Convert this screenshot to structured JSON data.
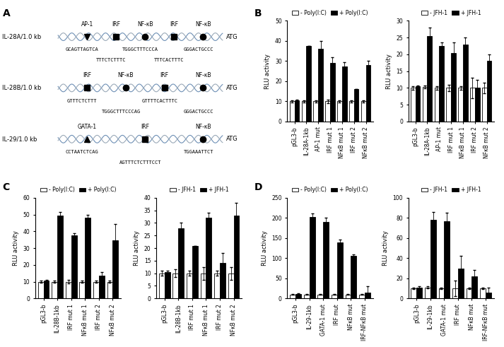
{
  "panel_labels": [
    "A",
    "B",
    "C",
    "D"
  ],
  "diagram": {
    "promoters": [
      {
        "name": "IL-28A/1.0 kb",
        "end": "ATG",
        "sites": [
          "AP-1",
          "IRF",
          "NF-κB",
          "IRF",
          "NF-κB"
        ],
        "sequences": [
          "GCAGTTAGTCA",
          "TTTCTCTTTC",
          "TGGGCTTTCCCA",
          "TTTCACTTTC",
          "GGGACTGCCC"
        ]
      },
      {
        "name": "IL-28B/1.0 kb",
        "end": "ATG",
        "sites": [
          "IRF",
          "NF-κB",
          "IRF",
          "NF-κB"
        ],
        "sequences": [
          "GTTTCTCTTT",
          "TGGGCTTTCCCAG",
          "GTTTTCACTTTC",
          "GGGACTGCCC"
        ]
      },
      {
        "name": "IL-29/1.0 kb",
        "end": "ATG",
        "sites": [
          "GATA-1",
          "IRF",
          "NF-κB"
        ],
        "sequences": [
          "CCTAATCTCAG",
          "AGTTTCTCTTTCCT",
          "TGGAAATTCT"
        ]
      }
    ]
  },
  "chart_data": [
    {
      "type": "bar",
      "panel": "B",
      "y_label": "RLU activity",
      "categories": [
        "pGL3-b",
        "IL-28A-1kb",
        "AP-1 mut",
        "IRF mut 1",
        "NFκB mut 1",
        "IRF mut 2",
        "NFκB mut 2"
      ],
      "series": [
        {
          "name": "- Poly(I:C)",
          "color": "#ffffff",
          "values": [
            10,
            10,
            10,
            10,
            10,
            10,
            10
          ],
          "errors": [
            0.5,
            0.5,
            0.5,
            1,
            0.5,
            0.5,
            0.5
          ]
        },
        {
          "name": "+ Poly(I:C)",
          "color": "#000000",
          "values": [
            10.5,
            37.5,
            36,
            29,
            27.5,
            16,
            28
          ],
          "errors": [
            0.3,
            0,
            4,
            3,
            2,
            0,
            2
          ]
        }
      ],
      "ylim": [
        0,
        50
      ],
      "yticks": [
        0,
        10,
        20,
        30,
        40,
        50
      ],
      "legend": "top"
    },
    {
      "type": "bar",
      "panel": "B",
      "y_label": "RLU activity",
      "categories": [
        "pGL3-b",
        "IL-28A-1kb",
        "AP-1 mut",
        "IRF mut 1",
        "NFκB mut 1",
        "IRF mut 2",
        "NFκB mut 2"
      ],
      "series": [
        {
          "name": "- JFH-1",
          "color": "#ffffff",
          "values": [
            10,
            10.3,
            10,
            10,
            10,
            10,
            10
          ],
          "errors": [
            0.5,
            0.5,
            0.5,
            1,
            0.5,
            3,
            1.5
          ]
        },
        {
          "name": "+ JFH-1",
          "color": "#000000",
          "values": [
            10.5,
            25.5,
            22.5,
            20.5,
            23,
            10,
            18
          ],
          "errors": [
            0.3,
            2.5,
            1,
            3,
            2,
            2.5,
            2
          ]
        }
      ],
      "ylim": [
        0,
        30
      ],
      "yticks": [
        0,
        5,
        10,
        15,
        20,
        25,
        30
      ],
      "legend": "top"
    },
    {
      "type": "bar",
      "panel": "C",
      "y_label": "RLU activity",
      "categories": [
        "pGL3-b",
        "IL-28B-1kb",
        "IRF mut 1",
        "NFκB mut 1",
        "IRF mut 2",
        "NFκB mut 2"
      ],
      "series": [
        {
          "name": "- Poly(I:C)",
          "color": "#ffffff",
          "values": [
            10,
            10,
            10,
            10,
            10,
            10
          ],
          "errors": [
            0.5,
            0.5,
            1,
            0.5,
            0.5,
            0.5
          ]
        },
        {
          "name": "+ Poly(I:C)",
          "color": "#000000",
          "values": [
            10.5,
            49.5,
            37.5,
            48,
            13.5,
            34.5
          ],
          "errors": [
            0.5,
            2,
            1.5,
            2,
            2,
            10
          ]
        }
      ],
      "ylim": [
        0,
        60
      ],
      "yticks": [
        0,
        10,
        20,
        30,
        40,
        50,
        60
      ],
      "legend": "top"
    },
    {
      "type": "bar",
      "panel": "C",
      "y_label": "RLU activity",
      "categories": [
        "pGL3-b",
        "IL-28B-1kb",
        "IRF mut 1",
        "NFκB mut 1",
        "IRF mut 2",
        "NFκB mut 2"
      ],
      "series": [
        {
          "name": "- JFH-1",
          "color": "#ffffff",
          "values": [
            10,
            10,
            10,
            10,
            10,
            10
          ],
          "errors": [
            1,
            1.5,
            1,
            2.5,
            1,
            2.5
          ]
        },
        {
          "name": "+ JFH-1",
          "color": "#000000",
          "values": [
            10.5,
            28,
            21,
            32,
            14,
            33
          ],
          "errors": [
            0.5,
            2,
            0,
            2,
            4,
            5
          ]
        }
      ],
      "ylim": [
        0,
        40
      ],
      "yticks": [
        0,
        5,
        10,
        15,
        20,
        25,
        30,
        35,
        40
      ],
      "legend": "top"
    },
    {
      "type": "bar",
      "panel": "D",
      "y_label": "RLU activity",
      "categories": [
        "pGL3-b",
        "IL-29-1kb",
        "GATA-1 mut",
        "IRF mut",
        "NFκB mut",
        "IRF-NFκB mut"
      ],
      "series": [
        {
          "name": "- Poly(I:C)",
          "color": "#ffffff",
          "values": [
            10,
            10,
            10,
            10,
            10,
            10
          ],
          "errors": [
            1,
            1,
            1,
            1,
            1,
            1
          ]
        },
        {
          "name": "+ Poly(I:C)",
          "color": "#000000",
          "values": [
            11,
            203,
            190,
            140,
            105,
            15
          ],
          "errors": [
            1,
            8,
            10,
            7,
            5,
            15
          ]
        }
      ],
      "ylim": [
        0,
        250
      ],
      "yticks": [
        0,
        50,
        100,
        150,
        200,
        250
      ],
      "legend": "top"
    },
    {
      "type": "bar",
      "panel": "D",
      "y_label": "RLU activity",
      "categories": [
        "pGL3-b",
        "IL-29-1kb",
        "GATA-1 mut",
        "IRF mut",
        "NFκB mut",
        "IRF-NFκB mut"
      ],
      "series": [
        {
          "name": "- JFH-1",
          "color": "#ffffff",
          "values": [
            10,
            11,
            10,
            10,
            10,
            10
          ],
          "errors": [
            1,
            1,
            1,
            8,
            1,
            1
          ]
        },
        {
          "name": "+ JFH-1",
          "color": "#000000",
          "values": [
            11,
            78,
            77,
            30,
            22,
            6
          ],
          "errors": [
            1,
            8,
            8,
            12,
            6,
            5
          ]
        }
      ],
      "ylim": [
        0,
        100
      ],
      "yticks": [
        0,
        20,
        40,
        60,
        80,
        100
      ],
      "legend": "top"
    }
  ]
}
